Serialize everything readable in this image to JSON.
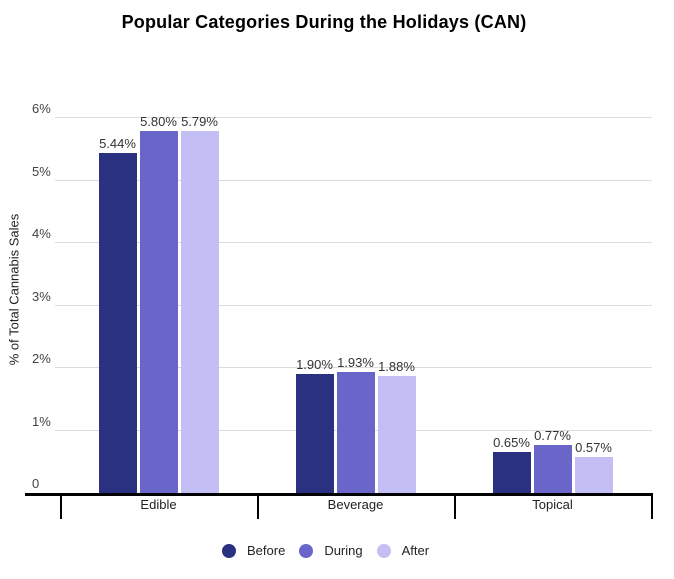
{
  "title": "Popular Categories During the Holidays (CAN)",
  "colors": {
    "before": "#2a3180",
    "during": "#6a66c9",
    "after": "#c3bff4",
    "gridline": "#dcdcdc",
    "axis": "#000000",
    "value_label": "#333333"
  },
  "chart_data": {
    "type": "bar",
    "title": "Popular Categories During the Holidays (CAN)",
    "categories": [
      "Edible",
      "Beverage",
      "Topical"
    ],
    "series": [
      {
        "name": "Before",
        "color": "#2a3180",
        "values": [
          5.44,
          1.9,
          0.65
        ]
      },
      {
        "name": "During",
        "color": "#6a66c9",
        "values": [
          5.8,
          1.93,
          0.77
        ]
      },
      {
        "name": "After",
        "color": "#c3bff4",
        "values": [
          5.79,
          1.88,
          0.57
        ]
      }
    ],
    "value_labels": [
      [
        "5.44%",
        "5.80%",
        "5.79%"
      ],
      [
        "1.90%",
        "1.93%",
        "1.88%"
      ],
      [
        "0.65%",
        "0.77%",
        "0.57%"
      ]
    ],
    "xlabel": "",
    "ylabel": "% of Total Cannabis Sales",
    "yticks": [
      "0",
      "1%",
      "2%",
      "3%",
      "4%",
      "5%",
      "6%"
    ],
    "ylim": [
      0,
      6
    ],
    "grid": true,
    "legend_position": "bottom",
    "legend": [
      "Before",
      "During",
      "After"
    ]
  }
}
